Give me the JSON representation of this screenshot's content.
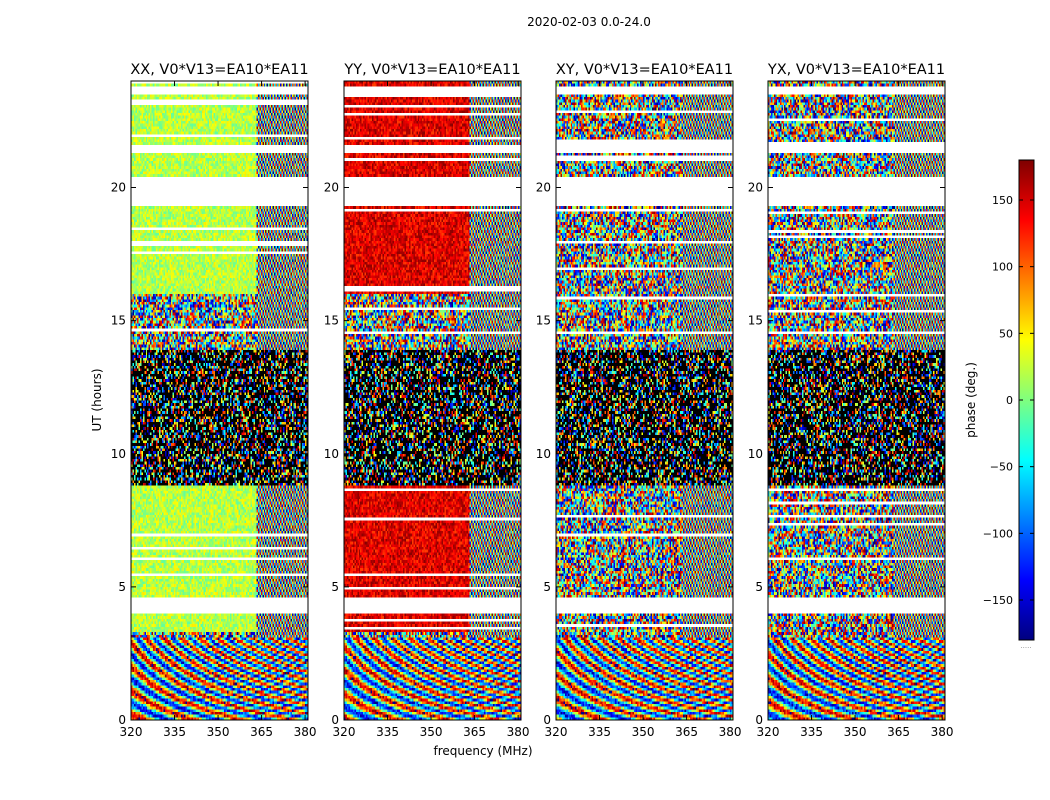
{
  "chart_data": {
    "type": "heatmap",
    "title": "2020-02-03 0.0-24.0",
    "xlabel": "frequency (MHz)",
    "ylabel": "UT (hours)",
    "xlim": [
      320,
      381
    ],
    "ylim": [
      0,
      24
    ],
    "xticks": [
      320,
      335,
      350,
      365,
      380
    ],
    "yticks": [
      0,
      5,
      10,
      15,
      20
    ],
    "colorbar": {
      "label": "phase (deg.)",
      "range": [
        -180,
        180
      ],
      "ticks": [
        150,
        100,
        50,
        0,
        -50,
        -100,
        -150
      ],
      "colormap": "jet",
      "footnote": "....."
    },
    "panels": [
      {
        "title": "XX, V0*V13=EA10*EA11",
        "dominant_phase_low_freq": 20
      },
      {
        "title": "YY, V0*V13=EA10*EA11",
        "dominant_phase_low_freq": 145
      },
      {
        "title": "XY, V0*V13=EA10*EA11",
        "dominant_phase_low_freq": null
      },
      {
        "title": "YX, V0*V13=EA10*EA11",
        "dominant_phase_low_freq": null
      }
    ],
    "flagged_ut_ranges": [
      [
        4.0,
        4.6
      ],
      [
        19.3,
        20.4
      ],
      [
        21.3,
        21.6
      ],
      [
        23.5,
        23.75
      ]
    ],
    "dense_noise_ut_range": [
      8.8,
      13.9
    ],
    "fringe_onset_freq": 363
  },
  "colors": {
    "flag": "#ffffff",
    "jet": [
      "#00007f",
      "#0000ff",
      "#007fff",
      "#00ffff",
      "#7fff7f",
      "#ffff00",
      "#ff7f00",
      "#ff0000",
      "#7f0000"
    ]
  }
}
